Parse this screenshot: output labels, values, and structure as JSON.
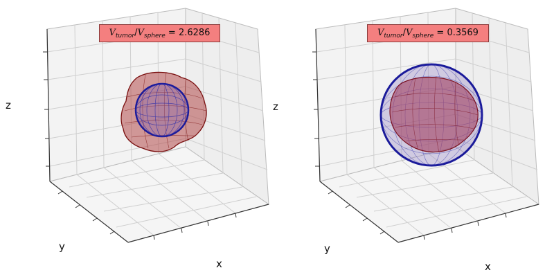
{
  "figure": {
    "panels": [
      {
        "id": "left",
        "ratio_value": "2.6286",
        "axis_labels": {
          "x": "x",
          "y": "y",
          "z": "z"
        },
        "tumor_extent": "larger",
        "sphere_extent": "smaller"
      },
      {
        "id": "right",
        "ratio_value": "0.3569",
        "axis_labels": {
          "x": "x",
          "y": "y",
          "z": "z"
        },
        "tumor_extent": "smaller",
        "sphere_extent": "larger"
      }
    ],
    "ratio_symbol": {
      "v": "V",
      "tumor_sub": "tumor",
      "sphere_sub": "sphere",
      "equals": " = "
    },
    "colors": {
      "tumor": "#8b1a1a",
      "sphere": "#1a1a9a",
      "label_box": "#f47f7f",
      "grid": "#c8c8c8",
      "pane": "#f2f2f2"
    }
  }
}
